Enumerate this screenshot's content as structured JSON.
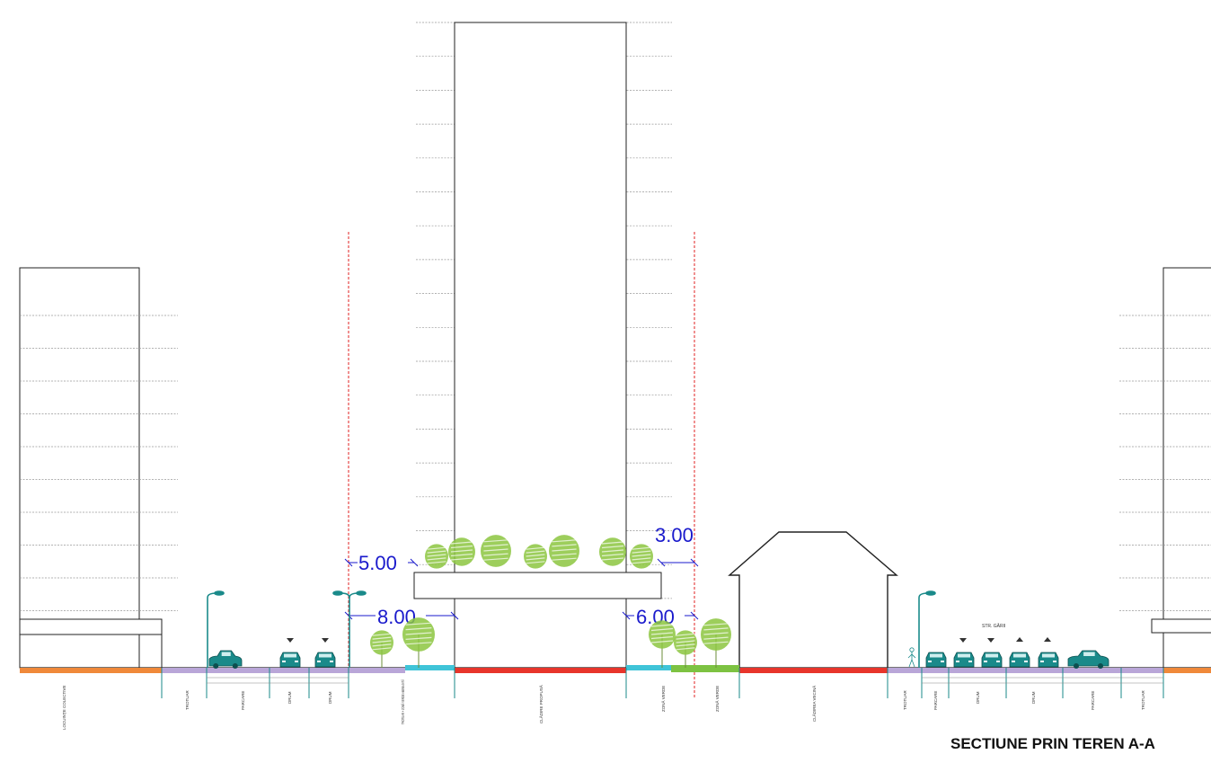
{
  "title": "SECTIUNE PRIN TEREN A-A",
  "dimensions": {
    "left_upper": "5.00",
    "left_lower": "8.00",
    "right_upper": "3.00",
    "right_lower": "6.00"
  },
  "street_label": "STR. GĂRII",
  "zones": {
    "left_block": "LOCUINȚE COLECTIVE",
    "left_sidewalk": "TROTUAR",
    "left_parking": "PARCARE",
    "left_road_1": "DRUM",
    "left_road_2": "DRUM",
    "plaza": "TROTUAR + ZONĂ VERDE AMENAJATĂ",
    "building": "CLĂDIRE PROPUSĂ",
    "green_1": "ZONĂ VERDE",
    "green_2": "ZONĂ VERDE",
    "neighbour": "CLĂDIREA VECINĂ",
    "right_sidewalk_1": "TROTUAR",
    "right_parking_1": "PARCARE",
    "right_road_1": "DRUM",
    "right_road_2": "DRUM",
    "right_parking_2": "PARCARE",
    "right_sidewalk_2": "TROTUAR"
  },
  "colors": {
    "outline": "#222222",
    "dimension": "#1a1acc",
    "limit_line": "#e02020",
    "ground_red": "#e8352b",
    "ground_orange": "#f0893a",
    "ground_purple": "#b9a6d8",
    "ground_cyan": "#3fc4d8",
    "ground_green": "#7dc242",
    "street_element": "#1a8a8a",
    "tree": "#8cc63f"
  },
  "icons": {
    "car": "car-icon",
    "tree": "tree-icon",
    "lamp": "street-lamp-icon",
    "arrow": "direction-arrow-icon",
    "person": "pedestrian-icon"
  }
}
